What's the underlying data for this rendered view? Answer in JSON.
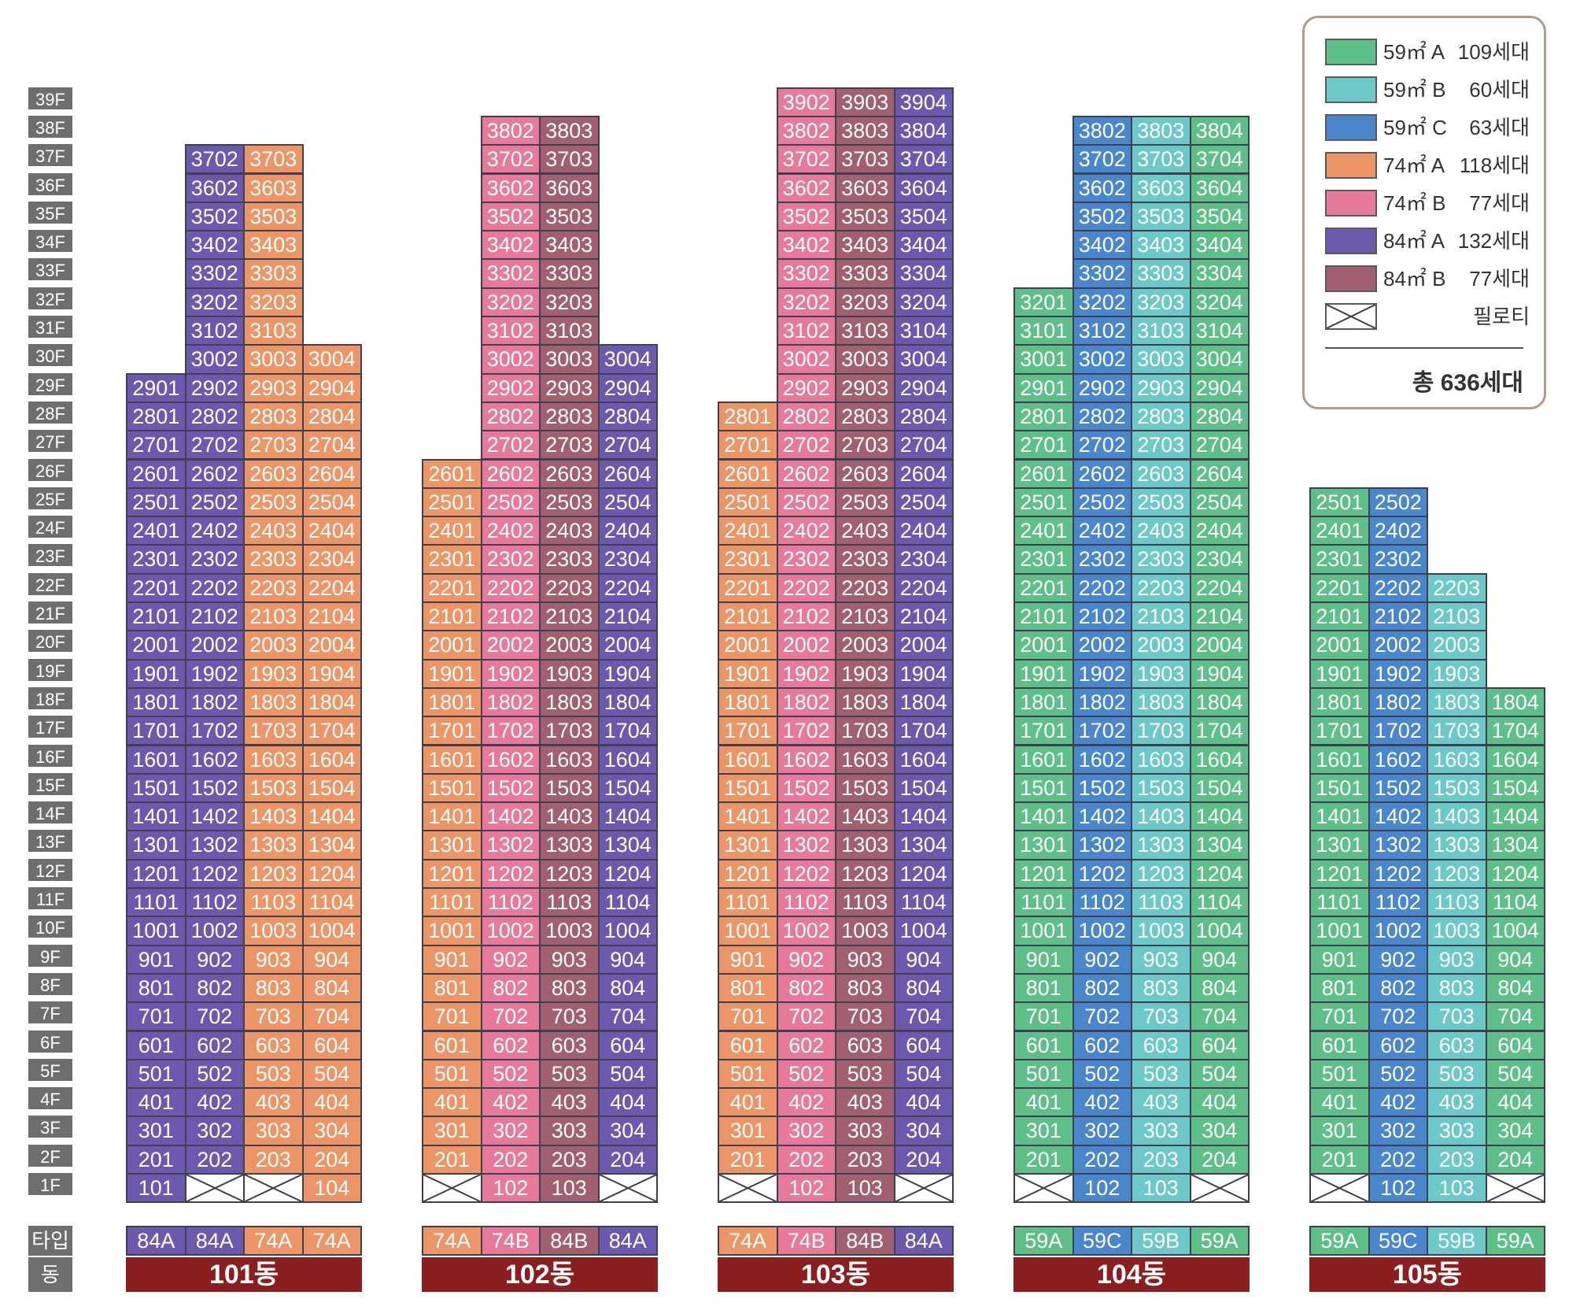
{
  "colors": {
    "59A": "#5fbf88",
    "59B": "#6cc9c8",
    "59C": "#4a86cc",
    "74A": "#ec9566",
    "74B": "#e77a9a",
    "84A": "#6a59ad",
    "84B": "#a1606f",
    "piloti": "#ffffff"
  },
  "floor_labels": [
    "39F",
    "38F",
    "37F",
    "36F",
    "35F",
    "34F",
    "33F",
    "32F",
    "31F",
    "30F",
    "29F",
    "28F",
    "27F",
    "26F",
    "25F",
    "24F",
    "23F",
    "22F",
    "21F",
    "20F",
    "19F",
    "18F",
    "17F",
    "16F",
    "15F",
    "14F",
    "13F",
    "12F",
    "11F",
    "10F",
    "9F",
    "8F",
    "7F",
    "6F",
    "5F",
    "4F",
    "3F",
    "2F",
    "1F"
  ],
  "row_labels": {
    "type": "타입",
    "building": "동"
  },
  "buildings": [
    {
      "name": "101동",
      "lines": [
        {
          "type": "84A",
          "line": "01",
          "top": 29,
          "bottom": 1,
          "pilotis": []
        },
        {
          "type": "84A",
          "line": "02",
          "top": 37,
          "bottom": 2,
          "pilotis": [
            1
          ]
        },
        {
          "type": "74A",
          "line": "03",
          "top": 37,
          "bottom": 2,
          "pilotis": [
            1
          ]
        },
        {
          "type": "74A",
          "line": "04",
          "top": 30,
          "bottom": 1,
          "pilotis": []
        }
      ]
    },
    {
      "name": "102동",
      "lines": [
        {
          "type": "74A",
          "line": "01",
          "top": 26,
          "bottom": 2,
          "pilotis": [
            1
          ]
        },
        {
          "type": "74B",
          "line": "02",
          "top": 38,
          "bottom": 1,
          "pilotis": []
        },
        {
          "type": "84B",
          "line": "03",
          "top": 38,
          "bottom": 1,
          "pilotis": []
        },
        {
          "type": "84A",
          "line": "04",
          "top": 30,
          "bottom": 2,
          "pilotis": [
            1
          ]
        }
      ]
    },
    {
      "name": "103동",
      "lines": [
        {
          "type": "74A",
          "line": "01",
          "top": 28,
          "bottom": 2,
          "pilotis": [
            1
          ]
        },
        {
          "type": "74B",
          "line": "02",
          "top": 39,
          "bottom": 1,
          "pilotis": []
        },
        {
          "type": "84B",
          "line": "03",
          "top": 39,
          "bottom": 1,
          "pilotis": []
        },
        {
          "type": "84A",
          "line": "04",
          "top": 39,
          "bottom": 2,
          "pilotis": [
            1
          ]
        }
      ]
    },
    {
      "name": "104동",
      "lines": [
        {
          "type": "59A",
          "line": "01",
          "top": 32,
          "bottom": 2,
          "pilotis": [
            1
          ]
        },
        {
          "type": "59C",
          "line": "02",
          "top": 38,
          "bottom": 1,
          "pilotis": []
        },
        {
          "type": "59B",
          "line": "03",
          "top": 38,
          "bottom": 1,
          "pilotis": []
        },
        {
          "type": "59A",
          "line": "04",
          "top": 38,
          "bottom": 2,
          "pilotis": [
            1
          ]
        }
      ]
    },
    {
      "name": "105동",
      "lines": [
        {
          "type": "59A",
          "line": "01",
          "top": 25,
          "bottom": 2,
          "pilotis": [
            1
          ]
        },
        {
          "type": "59C",
          "line": "02",
          "top": 25,
          "bottom": 1,
          "pilotis": []
        },
        {
          "type": "59B",
          "line": "03",
          "top": 22,
          "bottom": 1,
          "pilotis": []
        },
        {
          "type": "59A",
          "line": "04",
          "top": 18,
          "bottom": 2,
          "pilotis": [
            1
          ]
        }
      ]
    }
  ],
  "legend": {
    "items": [
      {
        "key": "59A",
        "label": "59㎡ A",
        "count": "109세대"
      },
      {
        "key": "59B",
        "label": "59㎡ B",
        "count": "60세대"
      },
      {
        "key": "59C",
        "label": "59㎡ C",
        "count": "63세대"
      },
      {
        "key": "74A",
        "label": "74㎡ A",
        "count": "118세대"
      },
      {
        "key": "74B",
        "label": "74㎡ B",
        "count": "77세대"
      },
      {
        "key": "84A",
        "label": "84㎡ A",
        "count": "132세대"
      },
      {
        "key": "84B",
        "label": "84㎡ B",
        "count": "77세대"
      },
      {
        "key": "piloti",
        "label": "",
        "count": "필로티"
      }
    ],
    "total": "총 636세대"
  }
}
